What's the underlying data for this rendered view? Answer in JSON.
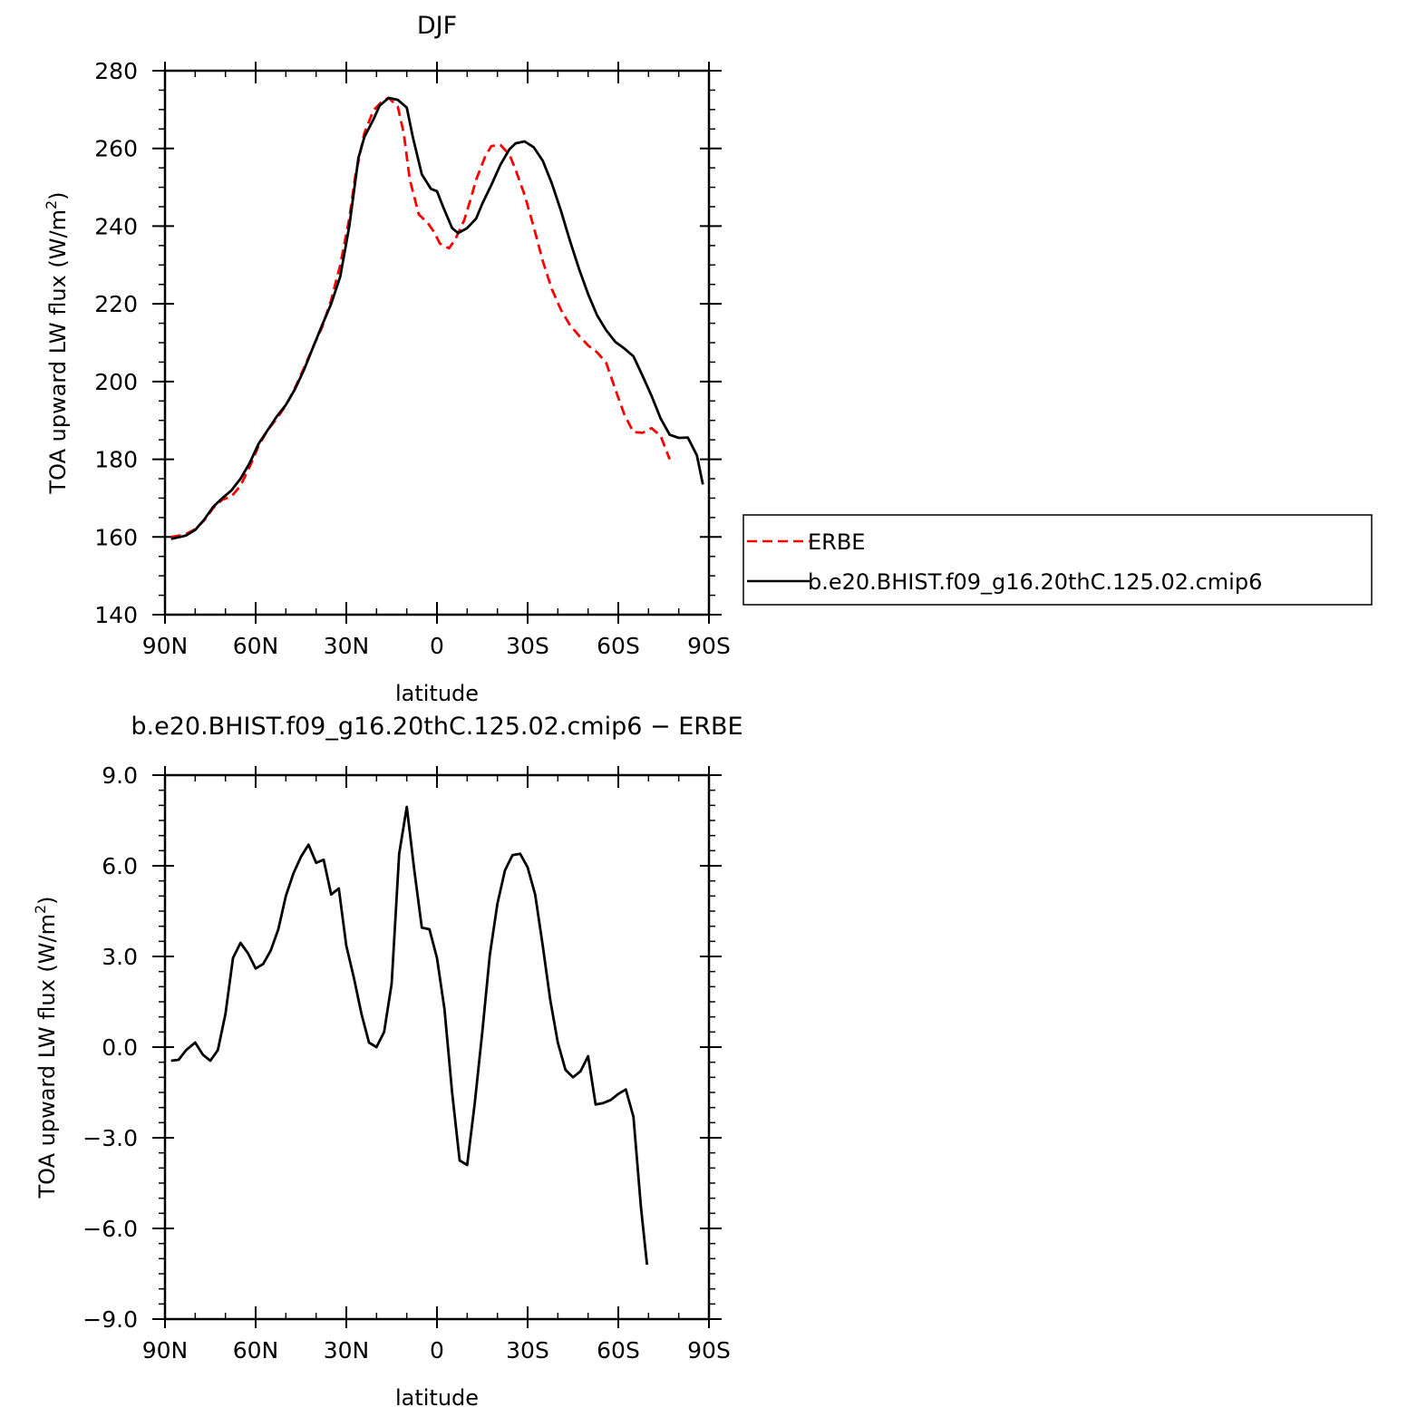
{
  "chart_data": [
    {
      "type": "line",
      "title": "DJF",
      "xlabel": "latitude",
      "ylabel_main": "TOA upward LW flux (W/m",
      "ylabel_sup": "2",
      "ylabel_end": ")",
      "xlim": [
        90,
        -90
      ],
      "ylim": [
        140,
        280
      ],
      "xticks": [
        {
          "value": 90,
          "label": "90N"
        },
        {
          "value": 60,
          "label": "60N"
        },
        {
          "value": 30,
          "label": "30N"
        },
        {
          "value": 0,
          "label": "0"
        },
        {
          "value": -30,
          "label": "30S"
        },
        {
          "value": -60,
          "label": "60S"
        },
        {
          "value": -90,
          "label": "90S"
        }
      ],
      "yticks": [
        {
          "value": 280,
          "label": "280"
        },
        {
          "value": 260,
          "label": "260"
        },
        {
          "value": 240,
          "label": "240"
        },
        {
          "value": 220,
          "label": "220"
        },
        {
          "value": 200,
          "label": "200"
        },
        {
          "value": 180,
          "label": "180"
        },
        {
          "value": 160,
          "label": "160"
        },
        {
          "value": 140,
          "label": "140"
        }
      ],
      "legend_position": "right",
      "series": [
        {
          "name": "ERBE",
          "color": "#ff0000",
          "dash": "dashed",
          "points": [
            [
              88,
              160
            ],
            [
              85,
              160.4
            ],
            [
              83,
              160.8
            ],
            [
              80,
              162
            ],
            [
              77,
              164.3
            ],
            [
              74,
              167.5
            ],
            [
              71,
              169.6
            ],
            [
              68,
              170.4
            ],
            [
              65,
              173.2
            ],
            [
              62,
              178
            ],
            [
              59,
              183.5
            ],
            [
              56,
              187.5
            ],
            [
              53,
              190.5
            ],
            [
              50,
              193.8
            ],
            [
              47,
              198.3
            ],
            [
              44,
              203.5
            ],
            [
              41,
              208.9
            ],
            [
              38,
              214
            ],
            [
              35,
              221
            ],
            [
              32,
              230
            ],
            [
              29,
              242
            ],
            [
              27,
              253
            ],
            [
              24,
              264
            ],
            [
              21,
              269.8
            ],
            [
              18,
              272.2
            ],
            [
              16,
              273
            ],
            [
              13,
              270.8
            ],
            [
              11,
              264
            ],
            [
              9,
              252
            ],
            [
              6,
              243
            ],
            [
              3,
              240.8
            ],
            [
              1,
              238.5
            ],
            [
              -1,
              235.5
            ],
            [
              -4,
              234.3
            ],
            [
              -6,
              236.5
            ],
            [
              -9,
              241.5
            ],
            [
              -11,
              246.6
            ],
            [
              -13,
              252
            ],
            [
              -16,
              258
            ],
            [
              -18,
              260.6
            ],
            [
              -21,
              260.9
            ],
            [
              -24,
              258.4
            ],
            [
              -26,
              254.5
            ],
            [
              -29,
              248
            ],
            [
              -32,
              239.8
            ],
            [
              -35,
              231
            ],
            [
              -38,
              223.8
            ],
            [
              -41,
              218.5
            ],
            [
              -44,
              214.5
            ],
            [
              -47,
              211.8
            ],
            [
              -50,
              209.3
            ],
            [
              -53,
              207.5
            ],
            [
              -56,
              204.8
            ],
            [
              -59,
              198
            ],
            [
              -62,
              191.5
            ],
            [
              -65,
              187
            ],
            [
              -68,
              186.8
            ],
            [
              -71,
              188
            ],
            [
              -74,
              186
            ],
            [
              -77,
              180
            ]
          ]
        },
        {
          "name": "b.e20.BHIST.f09_g16.20thC.125.02.cmip6",
          "color": "#000000",
          "dash": "solid",
          "points": [
            [
              88,
              159.5
            ],
            [
              85,
              160
            ],
            [
              83,
              160.4
            ],
            [
              80,
              161.8
            ],
            [
              77,
              164.5
            ],
            [
              74,
              167.8
            ],
            [
              71,
              170
            ],
            [
              68,
              172
            ],
            [
              65,
              175
            ],
            [
              62,
              179
            ],
            [
              59,
              184
            ],
            [
              56,
              187.5
            ],
            [
              53,
              191
            ],
            [
              50,
              194
            ],
            [
              47,
              198
            ],
            [
              44,
              203
            ],
            [
              41,
              208.8
            ],
            [
              38,
              214.5
            ],
            [
              35,
              220
            ],
            [
              32,
              227
            ],
            [
              29,
              240
            ],
            [
              26,
              257.5
            ],
            [
              24,
              263
            ],
            [
              21,
              267.5
            ],
            [
              19,
              271
            ],
            [
              16,
              273
            ],
            [
              13,
              272.5
            ],
            [
              10,
              270.5
            ],
            [
              8,
              263
            ],
            [
              5,
              253.3
            ],
            [
              2,
              249.6
            ],
            [
              0,
              249
            ],
            [
              -2,
              245
            ],
            [
              -5,
              239.5
            ],
            [
              -7,
              238.2
            ],
            [
              -10,
              239.5
            ],
            [
              -13,
              242
            ],
            [
              -15,
              245.8
            ],
            [
              -18,
              250.6
            ],
            [
              -21,
              255.8
            ],
            [
              -24,
              259.8
            ],
            [
              -26,
              261.3
            ],
            [
              -29,
              261.8
            ],
            [
              -32,
              260.3
            ],
            [
              -35,
              256.8
            ],
            [
              -38,
              251
            ],
            [
              -41,
              244
            ],
            [
              -44,
              236.2
            ],
            [
              -47,
              229
            ],
            [
              -50,
              222.5
            ],
            [
              -53,
              217
            ],
            [
              -56,
              213.2
            ],
            [
              -59,
              210.2
            ],
            [
              -62,
              208.5
            ],
            [
              -65,
              206.5
            ],
            [
              -68,
              201.5
            ],
            [
              -71,
              196.3
            ],
            [
              -74,
              190.5
            ],
            [
              -77,
              186.3
            ],
            [
              -80,
              185.5
            ],
            [
              -83,
              185.6
            ],
            [
              -86,
              181
            ],
            [
              -88,
              173.5
            ]
          ]
        }
      ]
    },
    {
      "type": "line",
      "title": "b.e20.BHIST.f09_g16.20thC.125.02.cmip6 − ERBE",
      "xlabel": "latitude",
      "ylabel_main": "TOA upward LW flux (W/m",
      "ylabel_sup": "2",
      "ylabel_end": ")",
      "xlim": [
        90,
        -90
      ],
      "ylim": [
        -9,
        9
      ],
      "xticks": [
        {
          "value": 90,
          "label": "90N"
        },
        {
          "value": 60,
          "label": "60N"
        },
        {
          "value": 30,
          "label": "30N"
        },
        {
          "value": 0,
          "label": "0"
        },
        {
          "value": -30,
          "label": "30S"
        },
        {
          "value": -60,
          "label": "60S"
        },
        {
          "value": -90,
          "label": "90S"
        }
      ],
      "yticks": [
        {
          "value": 9,
          "label": "9.0"
        },
        {
          "value": 6,
          "label": "6.0"
        },
        {
          "value": 3,
          "label": "3.0"
        },
        {
          "value": 0,
          "label": "0.0"
        },
        {
          "value": -3,
          "label": "−3.0"
        },
        {
          "value": -6,
          "label": "−6.0"
        },
        {
          "value": -9,
          "label": "−9.0"
        }
      ],
      "series": [
        {
          "color": "#000000",
          "dash": "solid",
          "points": [
            [
              88,
              -0.45
            ],
            [
              85.5,
              -0.42
            ],
            [
              83,
              -0.1
            ],
            [
              80,
              0.15
            ],
            [
              77.5,
              -0.25
            ],
            [
              75,
              -0.45
            ],
            [
              72.5,
              -0.1
            ],
            [
              70,
              1.1
            ],
            [
              67.5,
              2.95
            ],
            [
              65,
              3.45
            ],
            [
              62.5,
              3.1
            ],
            [
              60,
              2.6
            ],
            [
              57.5,
              2.75
            ],
            [
              55,
              3.2
            ],
            [
              52.5,
              3.9
            ],
            [
              50,
              5
            ],
            [
              47.5,
              5.75
            ],
            [
              45,
              6.3
            ],
            [
              42.5,
              6.7
            ],
            [
              40,
              6.1
            ],
            [
              37.5,
              6.2
            ],
            [
              35,
              5.05
            ],
            [
              32.5,
              5.25
            ],
            [
              30,
              3.35
            ],
            [
              27.5,
              2.3
            ],
            [
              25,
              1.1
            ],
            [
              22.5,
              0.15
            ],
            [
              20,
              0
            ],
            [
              17.5,
              0.5
            ],
            [
              15,
              2.1
            ],
            [
              12.5,
              6.4
            ],
            [
              10,
              7.95
            ],
            [
              7.5,
              5.85
            ],
            [
              5,
              3.95
            ],
            [
              2.5,
              3.9
            ],
            [
              0,
              2.95
            ],
            [
              -2.5,
              1.25
            ],
            [
              -5,
              -1.5
            ],
            [
              -7.5,
              -3.75
            ],
            [
              -10,
              -3.9
            ],
            [
              -12.5,
              -1.85
            ],
            [
              -15,
              0.5
            ],
            [
              -17.5,
              3.05
            ],
            [
              -20,
              4.75
            ],
            [
              -22.5,
              5.85
            ],
            [
              -25,
              6.35
            ],
            [
              -27.5,
              6.4
            ],
            [
              -30,
              5.95
            ],
            [
              -32.5,
              5.05
            ],
            [
              -35,
              3.35
            ],
            [
              -37.5,
              1.55
            ],
            [
              -40,
              0.15
            ],
            [
              -42.5,
              -0.75
            ],
            [
              -45,
              -1
            ],
            [
              -47.5,
              -0.8
            ],
            [
              -50,
              -0.3
            ],
            [
              -52.5,
              -1.9
            ],
            [
              -55,
              -1.85
            ],
            [
              -57.5,
              -1.75
            ],
            [
              -60,
              -1.55
            ],
            [
              -62.5,
              -1.4
            ],
            [
              -65,
              -2.3
            ],
            [
              -67.5,
              -5.3
            ],
            [
              -69.5,
              -7.2
            ]
          ]
        }
      ]
    }
  ]
}
